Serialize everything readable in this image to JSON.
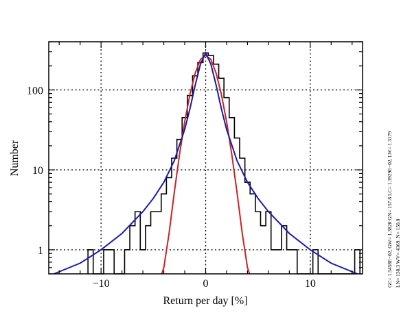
{
  "chart_data": {
    "type": "histogram",
    "title": "",
    "xlabel": "Return per day [%]",
    "ylabel": "Number",
    "xlim": [
      -15,
      15
    ],
    "ylim": [
      0.5,
      400
    ],
    "yscale": "log",
    "grid": true,
    "xticks": [
      -10,
      0,
      10
    ],
    "xtick_labels": [
      "−10",
      "0",
      "10"
    ],
    "yticks": [
      1,
      10,
      100
    ],
    "ytick_labels": [
      "1",
      "10",
      "100"
    ],
    "side_notes": [
      "GC= 1.5458E−02, GW= 1.3820    GN= 157.8    LC= 1.3929E−02, LW= 1.3179",
      "LN= 138.3    WV= 4369.    N= 150.0"
    ],
    "histogram": {
      "color": "#000000",
      "bin_width": 0.5,
      "edges": [
        -11.25,
        -10.75,
        -10.25,
        -9.75,
        -9.25,
        -8.75,
        -8.25,
        -7.75,
        -7.25,
        -6.75,
        -6.25,
        -5.75,
        -5.25,
        -4.75,
        -4.25,
        -3.75,
        -3.25,
        -2.75,
        -2.25,
        -1.75,
        -1.25,
        -0.75,
        -0.25,
        0.25,
        0.75,
        1.25,
        1.75,
        2.25,
        2.75,
        3.25,
        3.75,
        4.25,
        4.75,
        5.25,
        5.75,
        6.25,
        6.75,
        7.25,
        7.75,
        8.25,
        8.75,
        9.25,
        9.75,
        10.25,
        10.75,
        11.25,
        11.75,
        12.25,
        12.75,
        13.25,
        13.75,
        14.25,
        14.75
      ],
      "counts": [
        1,
        0,
        0,
        1,
        1,
        0,
        0,
        1,
        2,
        3,
        1,
        2,
        3,
        3,
        5,
        8,
        14,
        24,
        45,
        85,
        150,
        220,
        290,
        270,
        210,
        140,
        80,
        45,
        25,
        14,
        7,
        5,
        3,
        2,
        3,
        1,
        1,
        2,
        1,
        1,
        0,
        0,
        0,
        1,
        0,
        0,
        0,
        0,
        0,
        0,
        0,
        1
      ],
      "note": "counts of 0 are drawn at the bottom axis"
    },
    "series": [
      {
        "name": "",
        "kind": "gaussian",
        "color": "#cc2222",
        "x": [
          -4.2,
          -4.0,
          -3.5,
          -3.0,
          -2.5,
          -2.0,
          -1.5,
          -1.0,
          -0.5,
          0.0,
          0.5,
          1.0,
          1.5,
          2.0,
          2.5,
          3.0,
          3.5,
          4.0,
          4.2
        ],
        "y": [
          0.5,
          0.6,
          1.6,
          5.2,
          15.5,
          40,
          88,
          162,
          240,
          270,
          240,
          162,
          88,
          40,
          15.5,
          5.2,
          1.6,
          0.6,
          0.5
        ]
      },
      {
        "name": "",
        "kind": "lorentzian",
        "color": "#1a1aaa",
        "x": [
          -14.5,
          -12,
          -10,
          -8,
          -6,
          -5,
          -4,
          -3,
          -2,
          -1.5,
          -1,
          -0.5,
          0,
          0.5,
          1,
          1.5,
          2,
          3,
          4,
          5,
          6,
          8,
          10,
          12,
          14.5
        ],
        "y": [
          0.5,
          0.68,
          1.0,
          1.6,
          3.0,
          4.4,
          7.0,
          13,
          32,
          58,
          115,
          210,
          290,
          210,
          115,
          58,
          32,
          13,
          7.0,
          4.4,
          3.0,
          1.6,
          1.0,
          0.68,
          0.5
        ]
      }
    ]
  }
}
